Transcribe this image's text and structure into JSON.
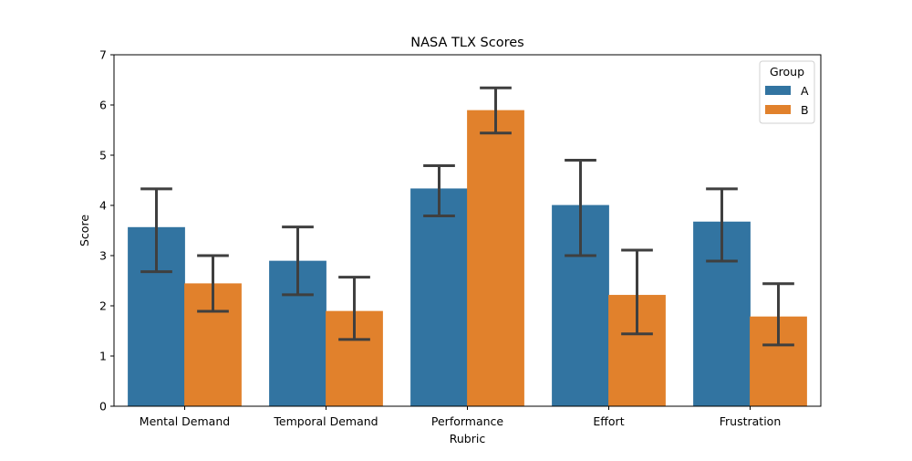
{
  "chart_data": {
    "type": "bar",
    "title": "NASA TLX Scores",
    "xlabel": "Rubric",
    "ylabel": "Score",
    "ylim": [
      0,
      7
    ],
    "yticks": [
      0,
      1,
      2,
      3,
      4,
      5,
      6,
      7
    ],
    "categories": [
      "Mental Demand",
      "Temporal Demand",
      "Performance",
      "Effort",
      "Frustration"
    ],
    "grid": false,
    "legend": {
      "title": "Group",
      "placement": "top-right"
    },
    "series": [
      {
        "name": "A",
        "color": "#3274a1",
        "values": [
          3.56,
          2.89,
          4.33,
          4.0,
          3.67
        ],
        "error_low": [
          2.68,
          2.22,
          3.79,
          3.0,
          2.89
        ],
        "error_high": [
          4.33,
          3.57,
          4.79,
          4.9,
          4.33
        ]
      },
      {
        "name": "B",
        "color": "#e1812c",
        "values": [
          2.44,
          1.89,
          5.89,
          2.21,
          1.78
        ],
        "error_low": [
          1.89,
          1.33,
          5.44,
          1.44,
          1.22
        ],
        "error_high": [
          3.0,
          2.57,
          6.34,
          3.11,
          2.44
        ]
      }
    ],
    "errorbar_color": "#3f3f3f"
  }
}
